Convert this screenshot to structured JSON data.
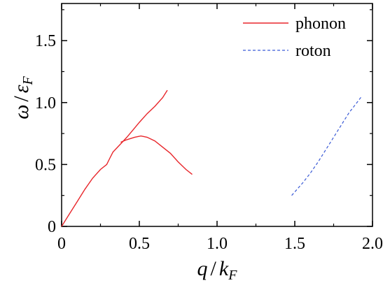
{
  "chart_data": {
    "type": "line",
    "xlabel": {
      "main": "q",
      "slash": "/",
      "denom": "k",
      "sub": "F"
    },
    "ylabel": {
      "main": "ω",
      "slash": "/",
      "denom": "ε",
      "sub": "F"
    },
    "xlim": [
      0,
      2.0
    ],
    "ylim": [
      0,
      1.8
    ],
    "xticks": [
      0,
      0.5,
      1.0,
      1.5,
      2.0
    ],
    "xtick_labels": [
      "0",
      "0.5",
      "1.0",
      "1.5",
      "2.0"
    ],
    "yticks": [
      0,
      0.5,
      1.0,
      1.5
    ],
    "ytick_labels": [
      "0",
      "0.5",
      "1.0",
      "1.5"
    ],
    "grid": false,
    "legend_position": "top-right",
    "series": [
      {
        "name": "phonon",
        "color": "#e8262b",
        "dash": "solid",
        "segments": [
          [
            [
              0.0,
              0.0
            ],
            [
              0.05,
              0.1
            ],
            [
              0.1,
              0.2
            ],
            [
              0.15,
              0.3
            ],
            [
              0.2,
              0.39
            ],
            [
              0.25,
              0.46
            ],
            [
              0.29,
              0.5
            ],
            [
              0.31,
              0.55
            ],
            [
              0.33,
              0.6
            ],
            [
              0.36,
              0.64
            ],
            [
              0.39,
              0.68
            ],
            [
              0.42,
              0.72
            ],
            [
              0.46,
              0.78
            ],
            [
              0.5,
              0.84
            ],
            [
              0.55,
              0.91
            ],
            [
              0.6,
              0.97
            ],
            [
              0.65,
              1.04
            ],
            [
              0.68,
              1.1
            ]
          ],
          [
            [
              0.38,
              0.68
            ],
            [
              0.42,
              0.7
            ],
            [
              0.47,
              0.72
            ],
            [
              0.51,
              0.73
            ],
            [
              0.55,
              0.72
            ],
            [
              0.6,
              0.69
            ],
            [
              0.65,
              0.64
            ],
            [
              0.7,
              0.59
            ],
            [
              0.75,
              0.52
            ],
            [
              0.8,
              0.46
            ],
            [
              0.84,
              0.42
            ]
          ]
        ]
      },
      {
        "name": "roton",
        "color": "#3b5bd6",
        "dash": "dashed",
        "segments": [
          [
            [
              1.48,
              0.25
            ],
            [
              1.55,
              0.35
            ],
            [
              1.6,
              0.43
            ],
            [
              1.65,
              0.52
            ],
            [
              1.7,
              0.62
            ],
            [
              1.75,
              0.72
            ],
            [
              1.8,
              0.82
            ],
            [
              1.85,
              0.92
            ],
            [
              1.9,
              1.0
            ],
            [
              1.93,
              1.05
            ]
          ]
        ]
      }
    ]
  }
}
